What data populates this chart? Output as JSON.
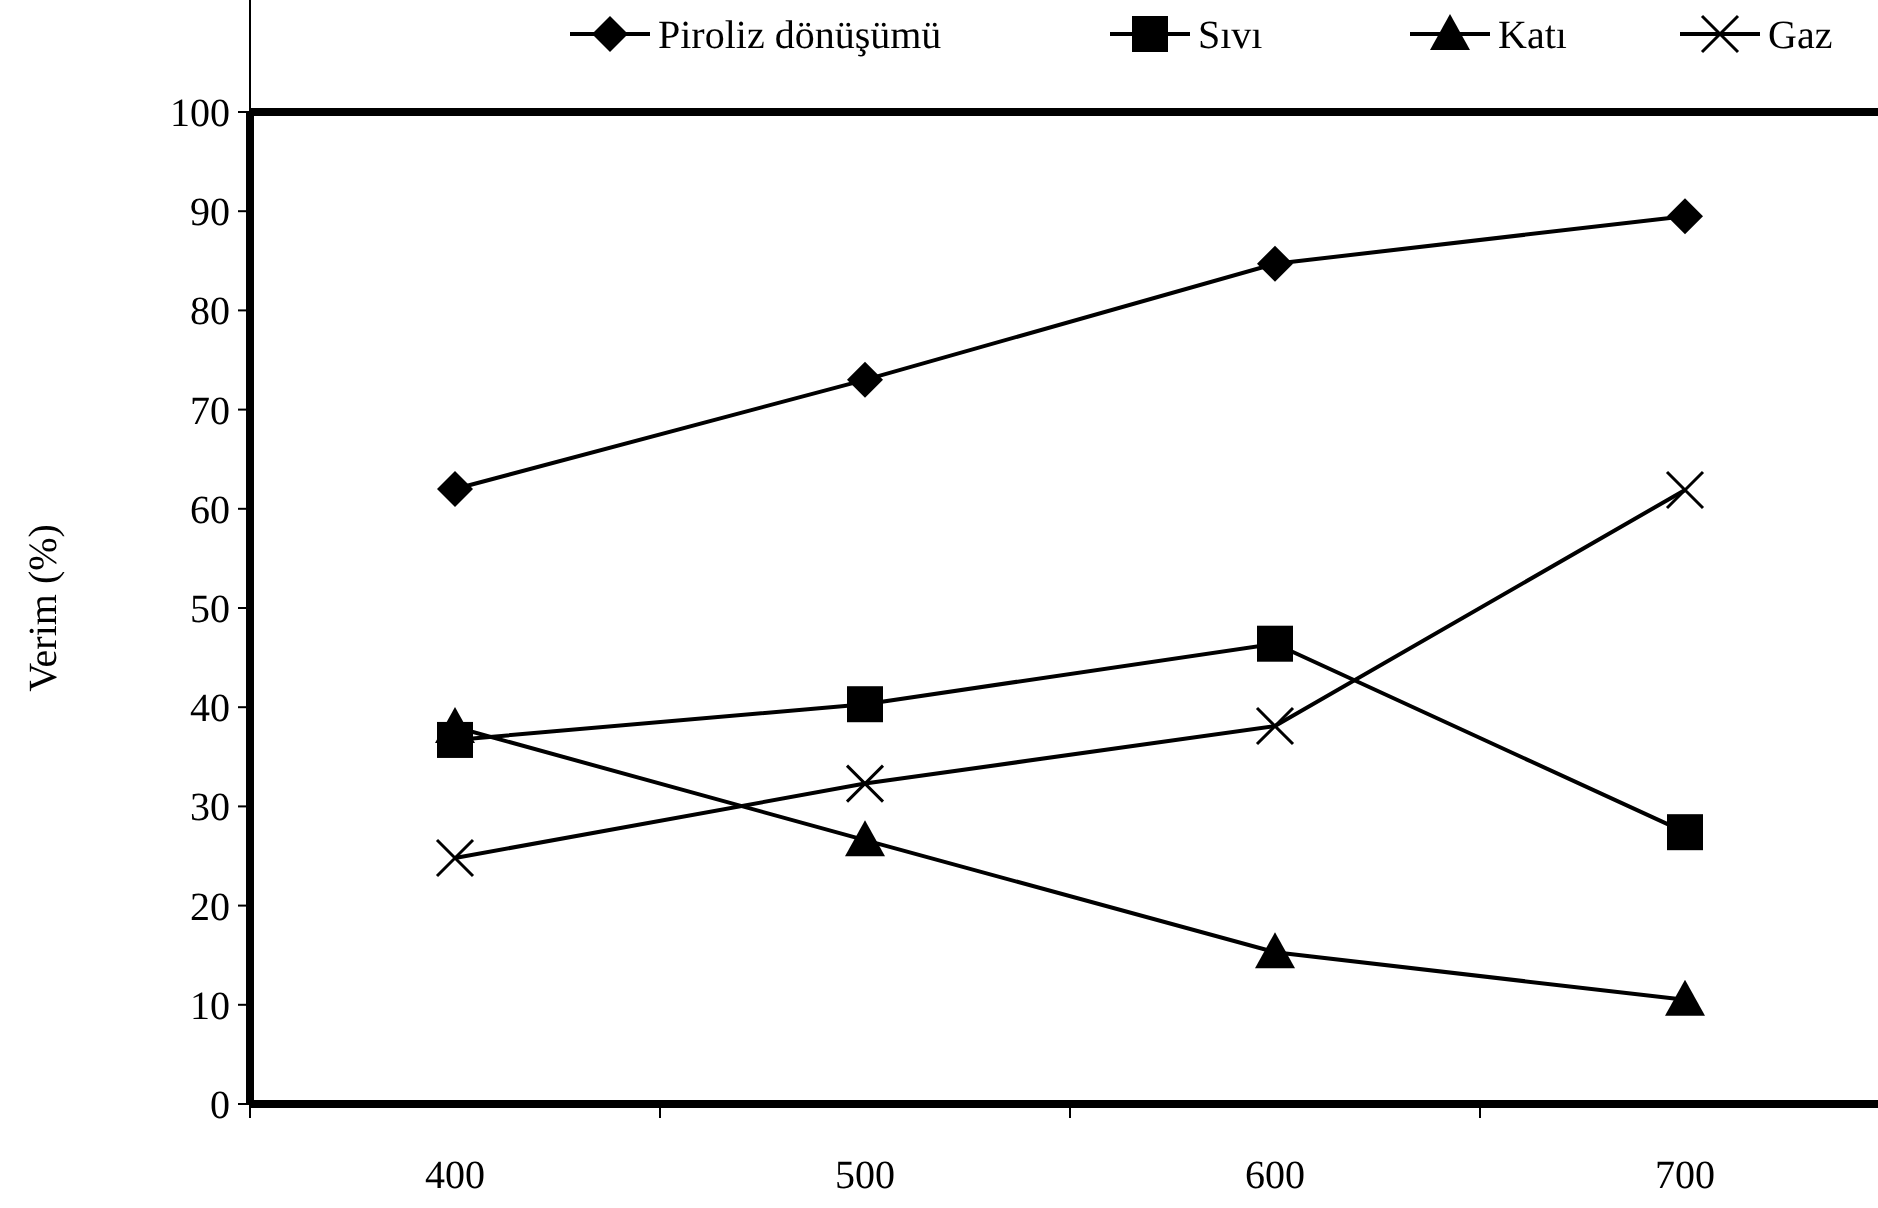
{
  "chart_data": {
    "type": "line",
    "ylabel": "Verim (%)",
    "categories": [
      "400",
      "500",
      "600",
      "700"
    ],
    "ylim": [
      0,
      100
    ],
    "yticks": [
      0,
      10,
      20,
      30,
      40,
      50,
      60,
      70,
      80,
      90,
      100
    ],
    "grid": false,
    "legend": "top",
    "line_style": "solid",
    "series": [
      {
        "name": "Piroliz dönüşümü",
        "color": "#000000",
        "marker": "diamond",
        "values": [
          62,
          73,
          84.7,
          89.5
        ]
      },
      {
        "name": "Sıvı",
        "color": "#000000",
        "marker": "square",
        "values": [
          36.7,
          40.3,
          46.4,
          27.4
        ]
      },
      {
        "name": "Katı",
        "color": "#000000",
        "marker": "triangle",
        "values": [
          38,
          26.6,
          15.3,
          10.5
        ]
      },
      {
        "name": "Gaz",
        "color": "#000000",
        "marker": "cross",
        "values": [
          24.8,
          32.3,
          38.1,
          61.9
        ]
      }
    ]
  }
}
